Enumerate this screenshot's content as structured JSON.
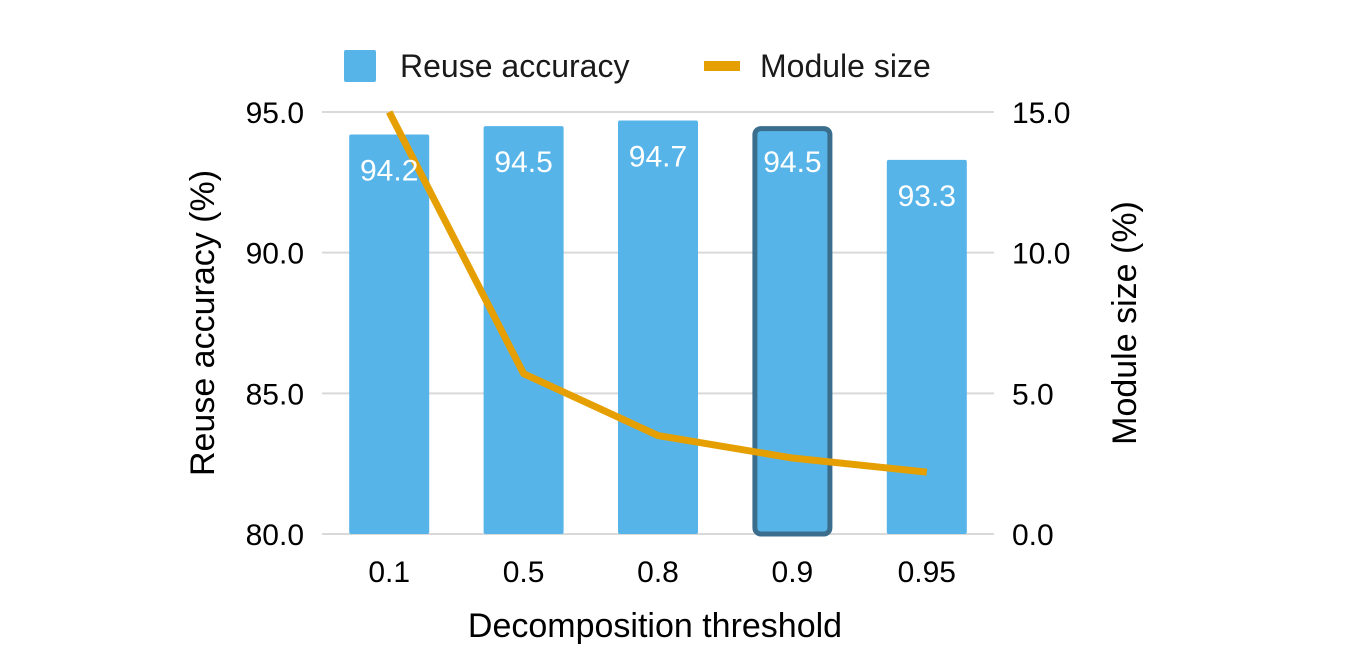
{
  "chart_data": {
    "type": "bar",
    "title": "",
    "xlabel": "Decomposition threshold",
    "ylabel": "Reuse accuracy (%)",
    "y2label": "Module size (%)",
    "categories": [
      "0.1",
      "0.5",
      "0.8",
      "0.9",
      "0.95"
    ],
    "ylim": [
      80.0,
      95.0
    ],
    "y_ticks": [
      "80.0",
      "85.0",
      "90.0",
      "95.0"
    ],
    "y2lim": [
      0.0,
      15.0
    ],
    "y2_ticks": [
      "0.0",
      "5.0",
      "10.0",
      "15.0"
    ],
    "grid": true,
    "legend_position": "top",
    "highlighted_category": "0.9",
    "series": [
      {
        "name": "Reuse accuracy",
        "type": "bar",
        "axis": "left",
        "color": "#56b4e9",
        "values": [
          94.2,
          94.5,
          94.7,
          94.5,
          93.3
        ],
        "labels": [
          "94.2",
          "94.5",
          "94.7",
          "94.5",
          "93.3"
        ]
      },
      {
        "name": "Module size",
        "type": "line",
        "axis": "right",
        "color": "#e69f00",
        "values": [
          15.0,
          5.7,
          3.5,
          2.7,
          2.2
        ]
      }
    ]
  }
}
